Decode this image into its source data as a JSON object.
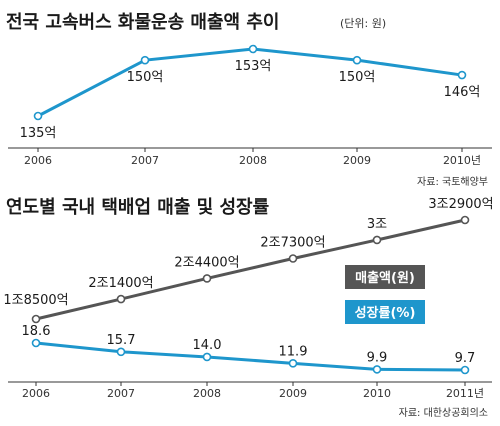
{
  "chart_data": [
    {
      "type": "line",
      "title": "전국 고속버스 화물운송 매출액 추이",
      "unit": "(단위: 원)",
      "categories": [
        "2006",
        "2007",
        "2008",
        "2009",
        "2010년"
      ],
      "series": [
        {
          "values": [
            135,
            150,
            153,
            150,
            146
          ],
          "labels": [
            "135억",
            "150억",
            "153억",
            "150억",
            "146억"
          ],
          "color": "#1e96cc"
        }
      ],
      "ylim": [
        125,
        160
      ],
      "source": "자료: 국토해양부"
    },
    {
      "type": "line",
      "title": "연도별 국내 택배업 매출 및 성장률",
      "categories": [
        "2006",
        "2007",
        "2008",
        "2009",
        "2010",
        "2011년"
      ],
      "series": [
        {
          "name": "매출액(원)",
          "values": [
            18500,
            21400,
            24400,
            27300,
            30000,
            32900
          ],
          "labels": [
            "1조8500억",
            "2조1400억",
            "2조4400억",
            "2조7300억",
            "3조",
            "3조2900억"
          ],
          "color": "#555555"
        },
        {
          "name": "성장률(%)",
          "values": [
            18.6,
            15.7,
            14.0,
            11.9,
            9.9,
            9.7
          ],
          "labels": [
            "18.6",
            "15.7",
            "14.0",
            "11.9",
            "9.9",
            "9.7"
          ],
          "color": "#1e96cc"
        }
      ],
      "source": "자료: 대한상공회의소"
    }
  ]
}
